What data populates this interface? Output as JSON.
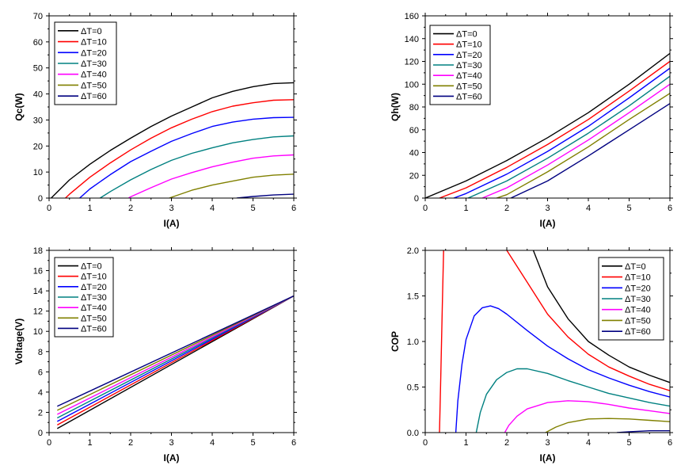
{
  "chart_data": [
    {
      "type": "line",
      "id": "qc",
      "xlabel": "I(A)",
      "ylabel": "Qc(W)",
      "xlim": [
        0,
        6
      ],
      "ylim": [
        0,
        70
      ],
      "xticks": [
        0,
        1,
        2,
        3,
        4,
        5,
        6
      ],
      "yticks": [
        0,
        10,
        20,
        30,
        40,
        50,
        60,
        70
      ],
      "legend_position": "top-left",
      "series": [
        {
          "name": "ΔT=0",
          "color": "#000000",
          "x": [
            0.05,
            0.5,
            1,
            1.5,
            2,
            2.5,
            3,
            3.5,
            4,
            4.5,
            5,
            5.5,
            6
          ],
          "y": [
            0,
            7,
            13,
            18.3,
            23,
            27.5,
            31.5,
            35,
            38.5,
            41,
            42.8,
            44,
            44.3
          ]
        },
        {
          "name": "ΔT=10",
          "color": "#ff0000",
          "x": [
            0.4,
            0.5,
            1,
            1.5,
            2,
            2.5,
            3,
            3.5,
            4,
            4.5,
            5,
            5.5,
            6
          ],
          "y": [
            0,
            1.5,
            8,
            13.5,
            18.5,
            23,
            27,
            30.3,
            33.2,
            35.3,
            36.6,
            37.6,
            37.8
          ]
        },
        {
          "name": "ΔT=20",
          "color": "#0000ff",
          "x": [
            0.75,
            1,
            1.5,
            2,
            2.5,
            3,
            3.5,
            4,
            4.5,
            5,
            5.5,
            6
          ],
          "y": [
            0,
            3.5,
            9,
            14,
            18,
            21.8,
            24.8,
            27.5,
            29.2,
            30.3,
            30.9,
            31
          ]
        },
        {
          "name": "ΔT=30",
          "color": "#008080",
          "x": [
            1.25,
            1.5,
            2,
            2.5,
            3,
            3.5,
            4,
            4.5,
            5,
            5.5,
            6
          ],
          "y": [
            0,
            2.5,
            7,
            11,
            14.5,
            17.2,
            19.3,
            21.2,
            22.5,
            23.5,
            23.9
          ]
        },
        {
          "name": "ΔT=40",
          "color": "#ff00ff",
          "x": [
            1.95,
            2,
            2.5,
            3,
            3.5,
            4,
            4.5,
            5,
            5.5,
            6
          ],
          "y": [
            0,
            0.5,
            4,
            7.3,
            9.8,
            12,
            13.8,
            15.3,
            16.2,
            16.6
          ]
        },
        {
          "name": "ΔT=50",
          "color": "#808000",
          "x": [
            2.95,
            3,
            3.5,
            4,
            4.5,
            5,
            5.5,
            6
          ],
          "y": [
            0,
            0.3,
            3,
            5,
            6.5,
            8,
            8.8,
            9.2
          ]
        },
        {
          "name": "ΔT=60",
          "color": "#000080",
          "x": [
            4.6,
            5,
            5.5,
            6
          ],
          "y": [
            0,
            0.6,
            1.2,
            1.5
          ]
        }
      ]
    },
    {
      "type": "line",
      "id": "qh",
      "xlabel": "I(A)",
      "ylabel": "Qh(W)",
      "xlim": [
        0,
        6
      ],
      "ylim": [
        0,
        160
      ],
      "xticks": [
        0,
        1,
        2,
        3,
        4,
        5,
        6
      ],
      "yticks": [
        0,
        20,
        40,
        60,
        80,
        100,
        120,
        140,
        160
      ],
      "legend_position": "top-left",
      "series": [
        {
          "name": "ΔT=0",
          "color": "#000000",
          "x": [
            0,
            1,
            2,
            3,
            4,
            5,
            6
          ],
          "y": [
            0,
            15,
            33,
            53,
            75,
            100,
            127
          ]
        },
        {
          "name": "ΔT=10",
          "color": "#ff0000",
          "x": [
            0.35,
            1,
            2,
            3,
            4,
            5,
            6
          ],
          "y": [
            0,
            9,
            27,
            47,
            69,
            94,
            120
          ]
        },
        {
          "name": "ΔT=20",
          "color": "#0000ff",
          "x": [
            0.7,
            1,
            2,
            3,
            4,
            5,
            6
          ],
          "y": [
            0,
            4,
            21,
            41,
            63,
            88,
            114
          ]
        },
        {
          "name": "ΔT=30",
          "color": "#008080",
          "x": [
            1.05,
            2,
            3,
            4,
            5,
            6
          ],
          "y": [
            0,
            15,
            35,
            57,
            81,
            107
          ]
        },
        {
          "name": "ΔT=40",
          "color": "#ff00ff",
          "x": [
            1.4,
            2,
            3,
            4,
            5,
            6
          ],
          "y": [
            0,
            9,
            29,
            51,
            75,
            100
          ]
        },
        {
          "name": "ΔT=50",
          "color": "#808000",
          "x": [
            1.75,
            2,
            3,
            4,
            5,
            6
          ],
          "y": [
            0,
            3,
            23,
            45,
            69,
            92
          ]
        },
        {
          "name": "ΔT=60",
          "color": "#000080",
          "x": [
            2.1,
            3,
            4,
            5,
            6
          ],
          "y": [
            0,
            15,
            37,
            60,
            83
          ]
        }
      ]
    },
    {
      "type": "line",
      "id": "voltage",
      "xlabel": "I(A)",
      "ylabel": "Voltage(V)",
      "xlim": [
        0,
        6
      ],
      "ylim": [
        0,
        18
      ],
      "xticks": [
        0,
        1,
        2,
        3,
        4,
        5,
        6
      ],
      "yticks": [
        0,
        2,
        4,
        6,
        8,
        10,
        12,
        14,
        16,
        18
      ],
      "legend_position": "top-left",
      "series": [
        {
          "name": "ΔT=0",
          "color": "#000000",
          "x": [
            0.2,
            6
          ],
          "y": [
            0.4,
            13.5
          ]
        },
        {
          "name": "ΔT=10",
          "color": "#ff0000",
          "x": [
            0.2,
            6
          ],
          "y": [
            0.75,
            13.5
          ]
        },
        {
          "name": "ΔT=20",
          "color": "#0000ff",
          "x": [
            0.2,
            6
          ],
          "y": [
            1.1,
            13.5
          ]
        },
        {
          "name": "ΔT=30",
          "color": "#008080",
          "x": [
            0.2,
            6
          ],
          "y": [
            1.45,
            13.5
          ]
        },
        {
          "name": "ΔT=40",
          "color": "#ff00ff",
          "x": [
            0.2,
            6
          ],
          "y": [
            1.8,
            13.5
          ]
        },
        {
          "name": "ΔT=50",
          "color": "#808000",
          "x": [
            0.2,
            6
          ],
          "y": [
            2.2,
            13.5
          ]
        },
        {
          "name": "ΔT=60",
          "color": "#000080",
          "x": [
            0.2,
            6
          ],
          "y": [
            2.6,
            13.5
          ]
        }
      ]
    },
    {
      "type": "line",
      "id": "cop",
      "xlabel": "I(A)",
      "ylabel": "COP",
      "xlim": [
        0,
        6
      ],
      "ylim": [
        0,
        2
      ],
      "xticks": [
        0,
        1,
        2,
        3,
        4,
        5,
        6
      ],
      "yticks": [
        0.0,
        0.5,
        1.0,
        1.5,
        2.0
      ],
      "ytick_labels": [
        "0.0",
        "0.5",
        "1.0",
        "1.5",
        "2.0"
      ],
      "legend_position": "top-right",
      "series": [
        {
          "name": "ΔT=0",
          "color": "#000000",
          "x": [
            2.65,
            3,
            3.5,
            4,
            4.5,
            5,
            5.5,
            6
          ],
          "y": [
            2.0,
            1.6,
            1.25,
            1.0,
            0.85,
            0.72,
            0.63,
            0.55
          ]
        },
        {
          "name": "ΔT=10",
          "color": "#ff0000",
          "x": [
            0.35,
            0.38,
            0.42,
            0.45
          ],
          "y": [
            0,
            0.6,
            1.4,
            2.0
          ],
          "x2": [
            2.0,
            2.5,
            3,
            3.5,
            4,
            4.5,
            5,
            5.5,
            6
          ],
          "y2": [
            2.0,
            1.65,
            1.3,
            1.05,
            0.86,
            0.72,
            0.62,
            0.53,
            0.46
          ]
        },
        {
          "name": "ΔT=20",
          "color": "#0000ff",
          "x": [
            0.75,
            0.8,
            0.9,
            1,
            1.2,
            1.4,
            1.6,
            1.8,
            2,
            2.5,
            3,
            3.5,
            4,
            4.5,
            5,
            5.5,
            6
          ],
          "y": [
            0,
            0.35,
            0.75,
            1.02,
            1.28,
            1.37,
            1.39,
            1.36,
            1.3,
            1.12,
            0.95,
            0.81,
            0.69,
            0.6,
            0.52,
            0.45,
            0.39
          ]
        },
        {
          "name": "ΔT=30",
          "color": "#008080",
          "x": [
            1.25,
            1.35,
            1.5,
            1.75,
            2,
            2.25,
            2.5,
            3,
            3.5,
            4,
            4.5,
            5,
            5.5,
            6
          ],
          "y": [
            0,
            0.22,
            0.42,
            0.58,
            0.66,
            0.7,
            0.7,
            0.65,
            0.57,
            0.5,
            0.43,
            0.38,
            0.33,
            0.29
          ]
        },
        {
          "name": "ΔT=40",
          "color": "#ff00ff",
          "x": [
            1.95,
            2.05,
            2.25,
            2.5,
            3,
            3.5,
            4,
            4.5,
            5,
            5.5,
            6
          ],
          "y": [
            0,
            0.08,
            0.18,
            0.26,
            0.33,
            0.35,
            0.34,
            0.31,
            0.27,
            0.24,
            0.21
          ]
        },
        {
          "name": "ΔT=50",
          "color": "#808000",
          "x": [
            2.95,
            3.2,
            3.5,
            4,
            4.5,
            5,
            5.5,
            6
          ],
          "y": [
            0,
            0.06,
            0.11,
            0.15,
            0.155,
            0.15,
            0.135,
            0.12
          ]
        },
        {
          "name": "ΔT=60",
          "color": "#000080",
          "x": [
            4.7,
            5,
            5.5,
            6
          ],
          "y": [
            0,
            0.01,
            0.02,
            0.02
          ]
        }
      ]
    }
  ]
}
